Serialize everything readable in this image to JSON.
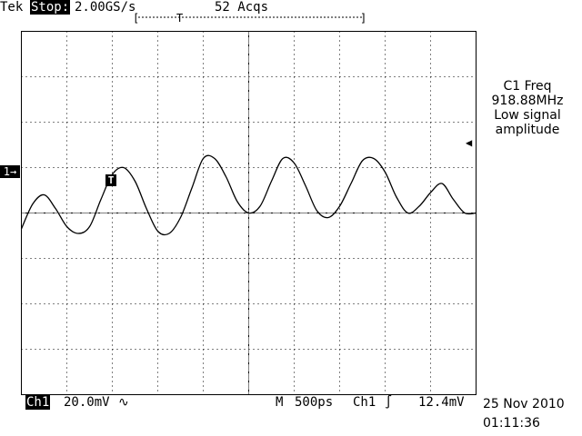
{
  "header": {
    "brand": "Tek",
    "mode": "Stop:",
    "sample_rate": "2.00GS/s",
    "acquisitions": "52 Acqs",
    "record_bracket_left": "[",
    "record_bracket_right": "]",
    "trigger_pos_marker": "T"
  },
  "measurement": {
    "title": "C1 Freq",
    "value": "918.88MHz",
    "warning_line1": "Low signal",
    "warning_line2": "amplitude"
  },
  "markers": {
    "channel_ground": "1→",
    "trigger_point": "T",
    "trigger_level": "◀"
  },
  "footer": {
    "channel": "Ch1",
    "volts_per_div": "20.0mV",
    "bandwidth_symbol": "∿",
    "timebase_label": "M",
    "time_per_div": "500ps",
    "trigger_source": "Ch1",
    "trigger_slope": "∫",
    "trigger_level": "12.4mV",
    "date": "25 Nov 2010",
    "time": "01:11:36"
  },
  "colors": {
    "background": "#ffffff",
    "trace": "#000000",
    "graticule": "#000000"
  },
  "chart_data": {
    "type": "line",
    "x": [
      0,
      0.25,
      0.5,
      0.75,
      1,
      1.25,
      1.5,
      1.75,
      2,
      2.25,
      2.5,
      2.75,
      3,
      3.25,
      3.5,
      3.75,
      4,
      4.25,
      4.5,
      4.75,
      5,
      5.25,
      5.5,
      5.75,
      6,
      6.25,
      6.5,
      6.75,
      7,
      7.25,
      7.5,
      7.75,
      8,
      8.25,
      8.5,
      8.75,
      9,
      9.25,
      9.5,
      9.75,
      10
    ],
    "series": [
      {
        "values": [
          -0.35,
          0.2,
          0.4,
          0.1,
          -0.3,
          -0.45,
          -0.3,
          0.3,
          0.85,
          1.0,
          0.7,
          0.1,
          -0.4,
          -0.45,
          -0.1,
          0.55,
          1.2,
          1.2,
          0.8,
          0.25,
          0.0,
          0.15,
          0.7,
          1.2,
          1.1,
          0.6,
          0.05,
          -0.1,
          0.15,
          0.65,
          1.15,
          1.2,
          0.9,
          0.35,
          0.0,
          0.15,
          0.45,
          0.65,
          0.3,
          0.0,
          0.0
        ]
      }
    ],
    "xlim": [
      0,
      10
    ],
    "ylim": [
      -4,
      4
    ],
    "grid": true
  }
}
